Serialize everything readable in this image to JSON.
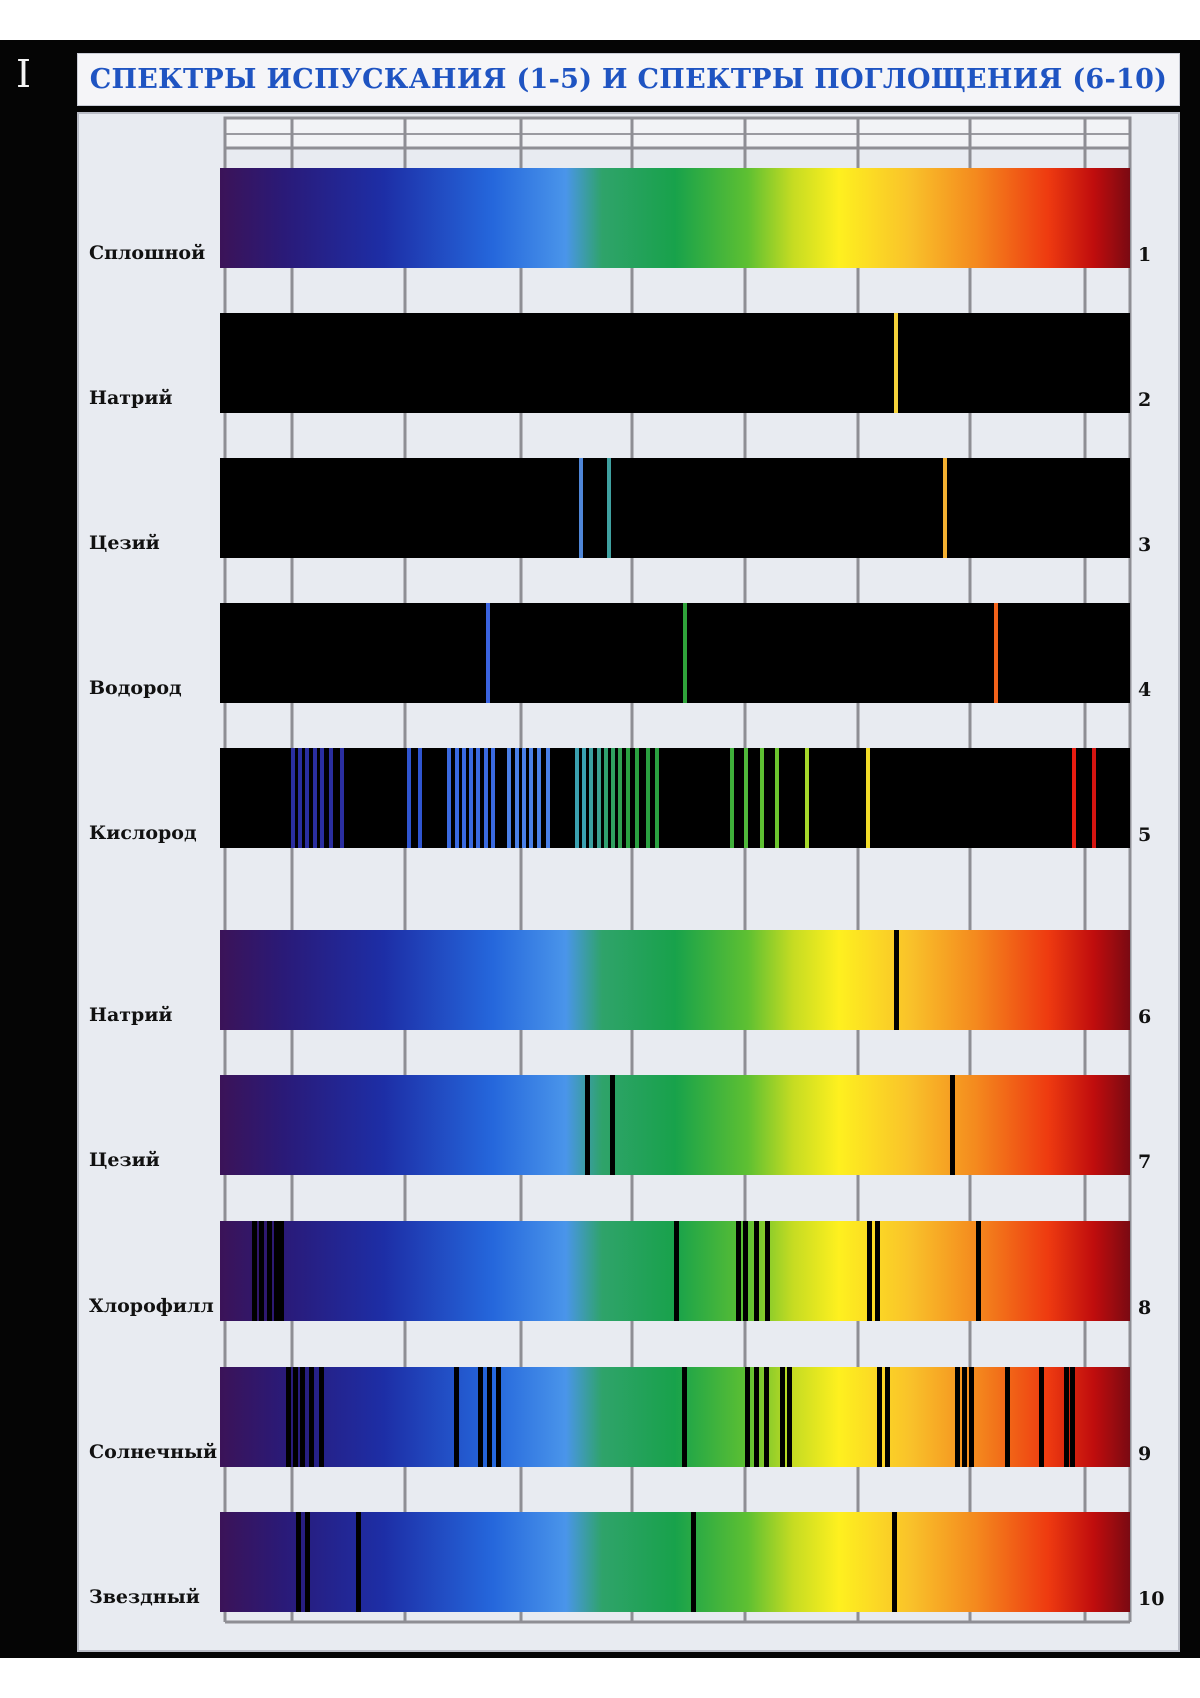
{
  "page_label": "I",
  "title": "СПЕКТРЫ ИСПУСКАНИЯ (1-5) И СПЕКТРЫ ПОГЛОЩЕНИЯ (6-10)",
  "colors": {
    "title": "#1f54c2",
    "panel": "#e8ebf1",
    "grid": "#8e8e94",
    "emission_background": "#000000",
    "absorption_line": "#000000"
  },
  "spectra": [
    {
      "number": "1",
      "label": "Сплошной",
      "kind": "continuous",
      "lines": []
    },
    {
      "number": "2",
      "label": "Натрий",
      "kind": "emission",
      "lines": [
        {
          "pos": 0.743,
          "color": "#f5d23a"
        }
      ]
    },
    {
      "number": "3",
      "label": "Цезий",
      "kind": "emission",
      "lines": [
        {
          "pos": 0.397,
          "color": "#4f86d8"
        },
        {
          "pos": 0.427,
          "color": "#3fa0a0"
        },
        {
          "pos": 0.797,
          "color": "#f4b030"
        }
      ]
    },
    {
      "number": "4",
      "label": "Водород",
      "kind": "emission",
      "lines": [
        {
          "pos": 0.294,
          "color": "#3a63e0"
        },
        {
          "pos": 0.511,
          "color": "#2fa33a"
        },
        {
          "pos": 0.853,
          "color": "#f2621a"
        }
      ]
    },
    {
      "number": "5",
      "label": "Кислород",
      "kind": "emission",
      "lines": [
        {
          "pos": 0.08,
          "color": "#2a2ea0"
        },
        {
          "pos": 0.088,
          "color": "#2a2ea0"
        },
        {
          "pos": 0.096,
          "color": "#2a2ea0"
        },
        {
          "pos": 0.104,
          "color": "#2a2ea0"
        },
        {
          "pos": 0.112,
          "color": "#2a2ea0"
        },
        {
          "pos": 0.122,
          "color": "#2a2ea0"
        },
        {
          "pos": 0.134,
          "color": "#2a2ea0"
        },
        {
          "pos": 0.208,
          "color": "#2f55d0"
        },
        {
          "pos": 0.22,
          "color": "#2f55d0"
        },
        {
          "pos": 0.252,
          "color": "#3a6ae0"
        },
        {
          "pos": 0.26,
          "color": "#3a6ae0"
        },
        {
          "pos": 0.268,
          "color": "#3a6ae0"
        },
        {
          "pos": 0.276,
          "color": "#3a6ae0"
        },
        {
          "pos": 0.284,
          "color": "#3a6ae0"
        },
        {
          "pos": 0.292,
          "color": "#3a6ae0"
        },
        {
          "pos": 0.3,
          "color": "#3a6ae0"
        },
        {
          "pos": 0.318,
          "color": "#4a80e8"
        },
        {
          "pos": 0.326,
          "color": "#4a80e8"
        },
        {
          "pos": 0.334,
          "color": "#4a80e8"
        },
        {
          "pos": 0.342,
          "color": "#4a80e8"
        },
        {
          "pos": 0.35,
          "color": "#4a80e8"
        },
        {
          "pos": 0.36,
          "color": "#4a80e8"
        },
        {
          "pos": 0.392,
          "color": "#3aa0b0"
        },
        {
          "pos": 0.4,
          "color": "#3aa0b0"
        },
        {
          "pos": 0.408,
          "color": "#3aa0a0"
        },
        {
          "pos": 0.416,
          "color": "#3aa090"
        },
        {
          "pos": 0.424,
          "color": "#30a070"
        },
        {
          "pos": 0.432,
          "color": "#30a060"
        },
        {
          "pos": 0.44,
          "color": "#30a050"
        },
        {
          "pos": 0.448,
          "color": "#2aa040"
        },
        {
          "pos": 0.458,
          "color": "#2aa040"
        },
        {
          "pos": 0.47,
          "color": "#2aa040"
        },
        {
          "pos": 0.48,
          "color": "#2aa040"
        },
        {
          "pos": 0.563,
          "color": "#3fb03a"
        },
        {
          "pos": 0.578,
          "color": "#4fb83a"
        },
        {
          "pos": 0.596,
          "color": "#5ec032"
        },
        {
          "pos": 0.612,
          "color": "#6cc42e"
        },
        {
          "pos": 0.645,
          "color": "#a6d82a"
        },
        {
          "pos": 0.712,
          "color": "#f2dc28"
        },
        {
          "pos": 0.938,
          "color": "#e81c10"
        },
        {
          "pos": 0.96,
          "color": "#d41410"
        }
      ]
    },
    {
      "number": "6",
      "label": "Натрий",
      "kind": "absorption",
      "lines": [
        {
          "pos": 0.743
        }
      ]
    },
    {
      "number": "7",
      "label": "Цезий",
      "kind": "absorption",
      "lines": [
        {
          "pos": 0.404
        },
        {
          "pos": 0.431
        },
        {
          "pos": 0.805
        }
      ]
    },
    {
      "number": "8",
      "label": "Хлорофилл",
      "kind": "absorption",
      "lines": [
        {
          "pos": 0.038
        },
        {
          "pos": 0.046
        },
        {
          "pos": 0.054
        },
        {
          "pos": 0.062
        },
        {
          "pos": 0.068
        },
        {
          "pos": 0.502
        },
        {
          "pos": 0.57
        },
        {
          "pos": 0.578
        },
        {
          "pos": 0.59
        },
        {
          "pos": 0.602
        },
        {
          "pos": 0.714
        },
        {
          "pos": 0.722
        },
        {
          "pos": 0.834
        }
      ]
    },
    {
      "number": "9",
      "label": "Солнечный",
      "kind": "absorption",
      "lines": [
        {
          "pos": 0.075
        },
        {
          "pos": 0.083
        },
        {
          "pos": 0.091
        },
        {
          "pos": 0.101
        },
        {
          "pos": 0.111
        },
        {
          "pos": 0.26
        },
        {
          "pos": 0.286
        },
        {
          "pos": 0.296
        },
        {
          "pos": 0.306
        },
        {
          "pos": 0.51
        },
        {
          "pos": 0.58
        },
        {
          "pos": 0.59
        },
        {
          "pos": 0.6
        },
        {
          "pos": 0.618
        },
        {
          "pos": 0.626
        },
        {
          "pos": 0.725
        },
        {
          "pos": 0.733
        },
        {
          "pos": 0.81
        },
        {
          "pos": 0.818
        },
        {
          "pos": 0.826
        },
        {
          "pos": 0.865
        },
        {
          "pos": 0.903
        },
        {
          "pos": 0.93
        },
        {
          "pos": 0.937
        }
      ]
    },
    {
      "number": "10",
      "label": "Звездный",
      "kind": "absorption",
      "lines": [
        {
          "pos": 0.086
        },
        {
          "pos": 0.096
        },
        {
          "pos": 0.152
        },
        {
          "pos": 0.52
        },
        {
          "pos": 0.741
        }
      ]
    }
  ]
}
